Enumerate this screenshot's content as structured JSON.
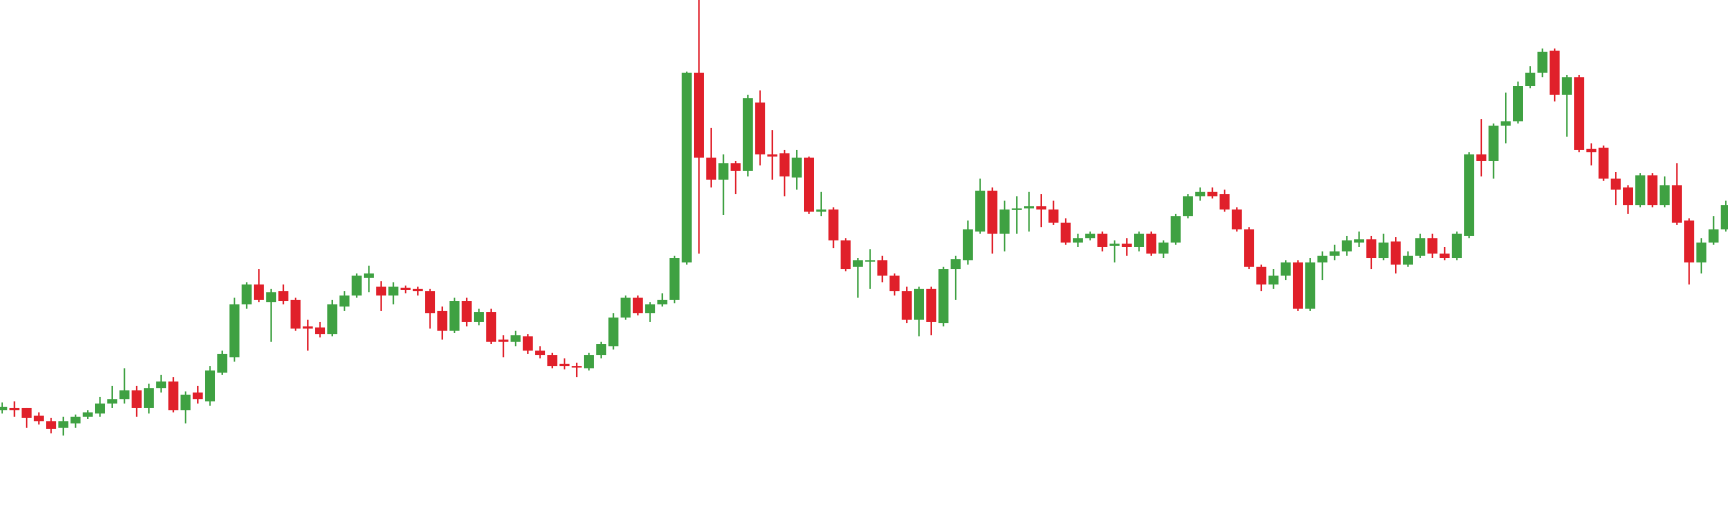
{
  "chart_data": {
    "type": "candlestick",
    "up_color": "#3fa142",
    "down_color": "#e0202a",
    "ylim": [
      0,
      458
    ],
    "candles": [
      [
        86,
        93,
        83,
        89
      ],
      [
        88,
        94,
        80,
        86
      ],
      [
        88,
        88,
        70,
        79
      ],
      [
        81,
        84,
        73,
        76
      ],
      [
        76,
        79,
        65,
        69
      ],
      [
        70,
        80,
        63,
        76
      ],
      [
        74,
        82,
        70,
        80
      ],
      [
        80,
        86,
        78,
        84
      ],
      [
        83,
        98,
        80,
        92
      ],
      [
        92,
        108,
        88,
        96
      ],
      [
        96,
        124,
        92,
        104
      ],
      [
        104,
        108,
        80,
        88
      ],
      [
        88,
        110,
        83,
        106
      ],
      [
        106,
        118,
        102,
        112
      ],
      [
        112,
        116,
        84,
        86
      ],
      [
        86,
        103,
        74,
        100
      ],
      [
        102,
        108,
        92,
        96
      ],
      [
        94,
        126,
        90,
        122
      ],
      [
        120,
        140,
        118,
        137
      ],
      [
        134,
        188,
        130,
        182
      ],
      [
        182,
        202,
        178,
        200
      ],
      [
        200,
        214,
        184,
        186
      ],
      [
        184,
        196,
        148,
        193
      ],
      [
        194,
        200,
        182,
        185
      ],
      [
        186,
        188,
        158,
        160
      ],
      [
        162,
        168,
        140,
        160
      ],
      [
        161,
        166,
        152,
        155
      ],
      [
        155,
        186,
        153,
        182
      ],
      [
        180,
        194,
        176,
        190
      ],
      [
        190,
        210,
        188,
        208
      ],
      [
        206,
        217,
        193,
        210
      ],
      [
        198,
        203,
        176,
        190
      ],
      [
        190,
        202,
        182,
        198
      ],
      [
        197,
        199,
        192,
        195
      ],
      [
        196,
        198,
        190,
        194
      ],
      [
        194,
        196,
        160,
        174
      ],
      [
        176,
        180,
        150,
        158
      ],
      [
        158,
        188,
        156,
        185
      ],
      [
        185,
        188,
        162,
        166
      ],
      [
        166,
        178,
        163,
        175
      ],
      [
        175,
        178,
        146,
        148
      ],
      [
        150,
        154,
        134,
        148
      ],
      [
        148,
        158,
        144,
        154
      ],
      [
        153,
        155,
        137,
        140
      ],
      [
        140,
        144,
        133,
        136
      ],
      [
        136,
        138,
        124,
        126
      ],
      [
        128,
        133,
        123,
        126
      ],
      [
        126,
        129,
        116,
        125
      ],
      [
        124,
        138,
        122,
        136
      ],
      [
        136,
        148,
        133,
        146
      ],
      [
        144,
        174,
        141,
        170
      ],
      [
        170,
        190,
        168,
        188
      ],
      [
        188,
        190,
        172,
        174
      ],
      [
        174,
        184,
        166,
        182
      ],
      [
        182,
        192,
        180,
        186
      ],
      [
        186,
        226,
        183,
        224
      ],
      [
        220,
        393,
        218,
        392
      ],
      [
        392,
        458,
        228,
        315
      ],
      [
        315,
        342,
        288,
        295
      ],
      [
        295,
        318,
        263,
        310
      ],
      [
        310,
        312,
        282,
        303
      ],
      [
        303,
        372,
        298,
        369
      ],
      [
        365,
        376,
        308,
        318
      ],
      [
        318,
        340,
        295,
        316
      ],
      [
        319,
        322,
        280,
        298
      ],
      [
        297,
        322,
        286,
        315
      ],
      [
        315,
        316,
        264,
        266
      ],
      [
        266,
        284,
        262,
        268
      ],
      [
        268,
        270,
        233,
        240
      ],
      [
        240,
        242,
        212,
        214
      ],
      [
        216,
        224,
        188,
        222
      ],
      [
        221,
        232,
        196,
        222
      ],
      [
        222,
        226,
        202,
        208
      ],
      [
        208,
        210,
        190,
        194
      ],
      [
        194,
        198,
        165,
        168
      ],
      [
        168,
        198,
        153,
        196
      ],
      [
        196,
        198,
        154,
        166
      ],
      [
        165,
        216,
        162,
        214
      ],
      [
        214,
        226,
        186,
        223
      ],
      [
        222,
        258,
        218,
        250
      ],
      [
        248,
        296,
        246,
        285
      ],
      [
        285,
        288,
        228,
        246
      ],
      [
        246,
        276,
        230,
        268
      ],
      [
        268,
        280,
        246,
        269
      ],
      [
        269,
        284,
        248,
        271
      ],
      [
        271,
        282,
        252,
        268
      ],
      [
        268,
        276,
        254,
        256
      ],
      [
        256,
        260,
        236,
        238
      ],
      [
        238,
        246,
        234,
        242
      ],
      [
        242,
        248,
        240,
        246
      ],
      [
        246,
        248,
        230,
        234
      ],
      [
        235,
        240,
        220,
        237
      ],
      [
        237,
        242,
        226,
        234
      ],
      [
        234,
        248,
        230,
        246
      ],
      [
        246,
        248,
        226,
        228
      ],
      [
        228,
        240,
        224,
        238
      ],
      [
        238,
        264,
        236,
        262
      ],
      [
        262,
        282,
        260,
        280
      ],
      [
        280,
        288,
        276,
        284
      ],
      [
        284,
        288,
        278,
        280
      ],
      [
        282,
        286,
        266,
        268
      ],
      [
        268,
        270,
        248,
        250
      ],
      [
        250,
        252,
        214,
        216
      ],
      [
        216,
        218,
        194,
        200
      ],
      [
        200,
        214,
        196,
        208
      ],
      [
        208,
        222,
        204,
        220
      ],
      [
        220,
        222,
        176,
        178
      ],
      [
        178,
        224,
        176,
        220
      ],
      [
        220,
        230,
        204,
        226
      ],
      [
        226,
        236,
        222,
        230
      ],
      [
        230,
        244,
        226,
        240
      ],
      [
        238,
        248,
        234,
        241
      ],
      [
        241,
        244,
        214,
        224
      ],
      [
        224,
        246,
        222,
        238
      ],
      [
        239,
        243,
        210,
        218
      ],
      [
        218,
        230,
        216,
        226
      ],
      [
        226,
        246,
        224,
        242
      ],
      [
        242,
        246,
        224,
        228
      ],
      [
        228,
        234,
        222,
        224
      ],
      [
        224,
        248,
        222,
        246
      ],
      [
        244,
        320,
        242,
        318
      ],
      [
        318,
        350,
        298,
        312
      ],
      [
        312,
        346,
        296,
        344
      ],
      [
        344,
        374,
        328,
        348
      ],
      [
        348,
        384,
        346,
        380
      ],
      [
        380,
        398,
        378,
        392
      ],
      [
        392,
        414,
        388,
        411
      ],
      [
        412,
        414,
        366,
        372
      ],
      [
        372,
        390,
        334,
        388
      ],
      [
        388,
        390,
        320,
        322
      ],
      [
        323,
        328,
        308,
        320
      ],
      [
        324,
        326,
        294,
        296
      ],
      [
        296,
        302,
        272,
        286
      ],
      [
        288,
        290,
        264,
        272
      ],
      [
        272,
        301,
        270,
        299
      ],
      [
        299,
        301,
        270,
        272
      ],
      [
        272,
        298,
        270,
        290
      ],
      [
        290,
        310,
        254,
        256
      ],
      [
        258,
        260,
        200,
        220
      ],
      [
        220,
        242,
        210,
        238
      ],
      [
        238,
        262,
        236,
        250
      ],
      [
        250,
        276,
        248,
        272
      ]
    ]
  }
}
